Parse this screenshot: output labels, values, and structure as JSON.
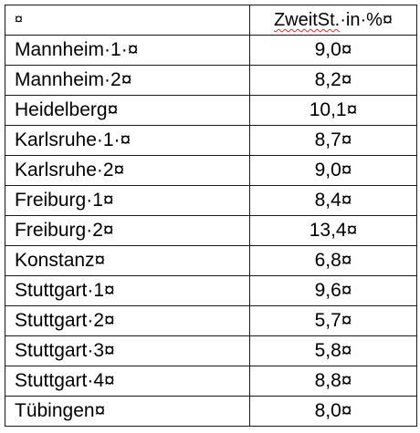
{
  "table": {
    "header": {
      "col1": "¤",
      "col2_word": "ZweitSt.",
      "col2_rest": "·in·%¤"
    },
    "rows": [
      {
        "name": "Mannheim·1·¤",
        "value": "9,0¤"
      },
      {
        "name": "Mannheim·2¤",
        "value": "8,2¤"
      },
      {
        "name": "Heidelberg¤",
        "value": "10,1¤"
      },
      {
        "name": "Karlsruhe·1·¤",
        "value": "8,7¤"
      },
      {
        "name": "Karlsruhe·2¤",
        "value": "9,0¤"
      },
      {
        "name": "Freiburg·1¤",
        "value": "8,4¤"
      },
      {
        "name": "Freiburg·2¤",
        "value": "13,4¤"
      },
      {
        "name": "Konstanz¤",
        "value": "6,8¤"
      },
      {
        "name": "Stuttgart·1¤",
        "value": "9,6¤"
      },
      {
        "name": "Stuttgart·2¤",
        "value": "5,7¤"
      },
      {
        "name": "Stuttgart·3¤",
        "value": "5,8¤"
      },
      {
        "name": "Stuttgart·4¤",
        "value": "8,8¤"
      },
      {
        "name": "Tübingen¤",
        "value": "8,0¤"
      }
    ]
  }
}
